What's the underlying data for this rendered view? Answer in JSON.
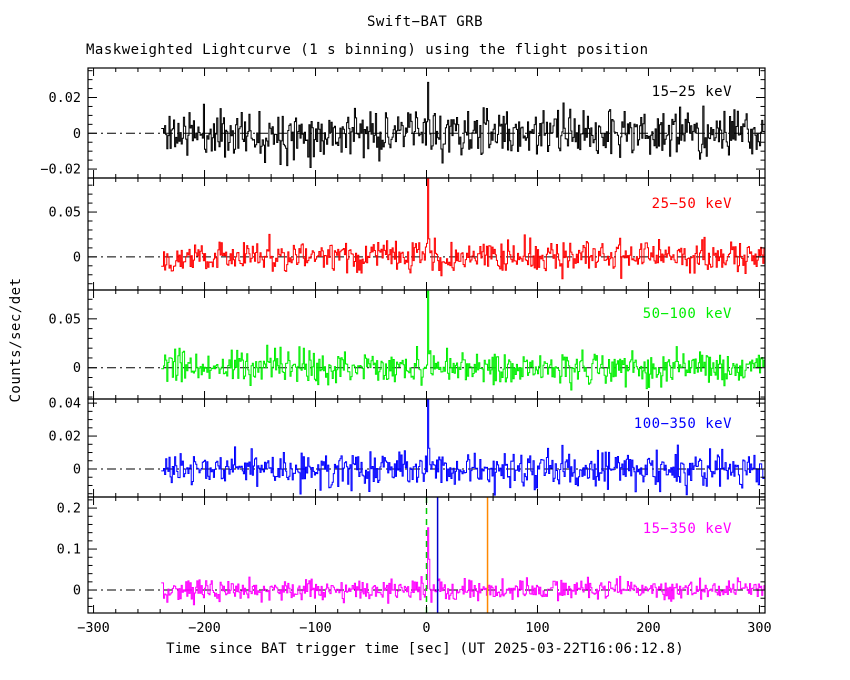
{
  "figure": {
    "title": "Swift−BAT GRB",
    "subtitle": "Maskweighted Lightcurve (1 s binning) using the flight position",
    "xlabel": "Time since BAT trigger time [sec] (UT 2025-03-22T16:06:12.8)",
    "ylabel": "Counts/sec/det"
  },
  "chart_data": {
    "type": "line",
    "title": "Swift−BAT GRB",
    "subtitle": "Maskweighted Lightcurve (1 s binning) using the flight position",
    "xlabel": "Time since BAT trigger time [sec] (UT 2025-03-22T16:06:12.8)",
    "ylabel": "Counts/sec/det",
    "x_axis": {
      "min": -305,
      "max": 305,
      "major_ticks": [
        -300,
        -200,
        -100,
        0,
        100,
        200,
        300
      ],
      "tick_labels": [
        "−300",
        "−200",
        "−100",
        "0",
        "100",
        "200",
        "300"
      ],
      "minor_step": 20,
      "binning_sec": 1,
      "data_start": -239,
      "data_end": 305
    },
    "grid": false,
    "legend_position": "inside-top-right-per-panel",
    "series": [
      {
        "label": "15−25 keV",
        "color": "#000000",
        "seed": 11,
        "ylim": [
          -0.025,
          0.0365
        ],
        "ytick_values": [
          -0.02,
          0,
          0.02
        ],
        "ytick_labels": [
          "−0.02",
          "0",
          "0.02"
        ],
        "y_minor_step": 0.005,
        "baseline": 0,
        "noise_sigma": 0.0065,
        "spike": {
          "t": 0,
          "amplitude": 0.027
        }
      },
      {
        "label": "25−50 keV",
        "color": "#ff0000",
        "seed": 22,
        "ylim": [
          -0.037,
          0.088
        ],
        "ytick_values": [
          0,
          0.05
        ],
        "ytick_labels": [
          "0",
          "0.05"
        ],
        "y_minor_step": 0.01,
        "baseline": 0,
        "noise_sigma": 0.0085,
        "spike": {
          "t": 0,
          "amplitude": 0.077
        }
      },
      {
        "label": "50−100 keV",
        "color": "#00ee00",
        "seed": 33,
        "ylim": [
          -0.032,
          0.0795
        ],
        "ytick_values": [
          0,
          0.05
        ],
        "ytick_labels": [
          "0",
          "0.05"
        ],
        "y_minor_step": 0.01,
        "baseline": 0,
        "noise_sigma": 0.0085,
        "spike": {
          "t": 0,
          "amplitude": 0.071
        }
      },
      {
        "label": "100−350 keV",
        "color": "#0000ff",
        "seed": 44,
        "ylim": [
          -0.017,
          0.0425
        ],
        "ytick_values": [
          0,
          0.02,
          0.04
        ],
        "ytick_labels": [
          "0",
          "0.02",
          "0.04"
        ],
        "y_minor_step": 0.005,
        "baseline": 0,
        "noise_sigma": 0.0055,
        "spike": {
          "t": 0,
          "amplitude": 0.036
        }
      },
      {
        "label": "15−350 keV",
        "color": "#ff00ff",
        "seed": 55,
        "ylim": [
          -0.056,
          0.227
        ],
        "ytick_values": [
          0,
          0.1,
          0.2
        ],
        "ytick_labels": [
          "0",
          "0.1",
          "0.2"
        ],
        "y_minor_step": 0.02,
        "baseline": 0,
        "noise_sigma": 0.013,
        "spike": {
          "t": 0,
          "amplitude": 0.19
        }
      }
    ],
    "zero_line": {
      "value": 0,
      "color": "#000000",
      "style": "dash-dot"
    },
    "markers": [
      {
        "name": "trigger-time-line",
        "t": 0,
        "color": "#00cc00",
        "style": "dashed",
        "panel": 4
      },
      {
        "name": "event-end-line",
        "t": 10,
        "color": "#0000cd",
        "style": "solid",
        "panel": 4
      },
      {
        "name": "slew-time-line",
        "t": 55,
        "color": "#ff8800",
        "style": "solid",
        "panel": 4
      }
    ]
  }
}
